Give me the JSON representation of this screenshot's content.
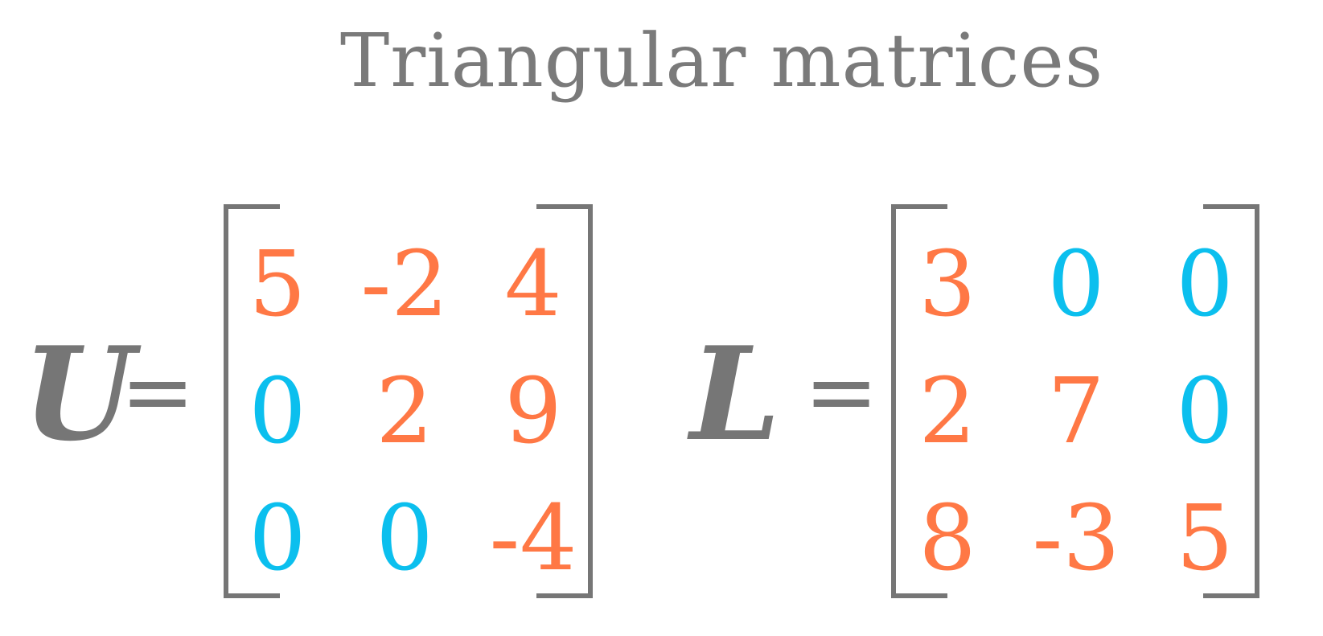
{
  "title": "Triangular matrices",
  "colors": {
    "nonzero": "#ff7845",
    "zero": "#0bbfee",
    "text": "#767676"
  },
  "upper": {
    "symbol": "U",
    "equals": "=",
    "rows": [
      [
        "5",
        "-2",
        "4"
      ],
      [
        "0",
        "2",
        "9"
      ],
      [
        "0",
        "0",
        "-4"
      ]
    ]
  },
  "lower": {
    "symbol": "L",
    "equals": "=",
    "rows": [
      [
        "3",
        "0",
        "0"
      ],
      [
        "2",
        "7",
        "0"
      ],
      [
        "8",
        "-3",
        "5"
      ]
    ]
  }
}
